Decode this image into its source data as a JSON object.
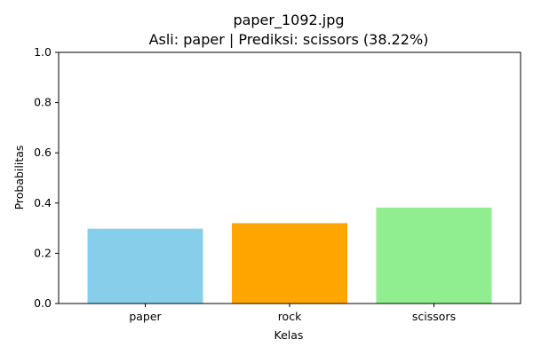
{
  "chart_data": {
    "type": "bar",
    "title": "paper_1092.jpg",
    "subtitle": "Asli: paper | Prediksi: scissors (38.22%)",
    "xlabel": "Kelas",
    "ylabel": "Probabilitas",
    "categories": [
      "paper",
      "rock",
      "scissors"
    ],
    "values": [
      0.298,
      0.32,
      0.3822
    ],
    "colors": [
      "#87ceeb",
      "#ffa500",
      "#90ee90"
    ],
    "ylim": [
      0,
      1.0
    ],
    "yticks": [
      "0.0",
      "0.2",
      "0.4",
      "0.6",
      "0.8",
      "1.0"
    ],
    "grid": false,
    "legend": "none"
  }
}
